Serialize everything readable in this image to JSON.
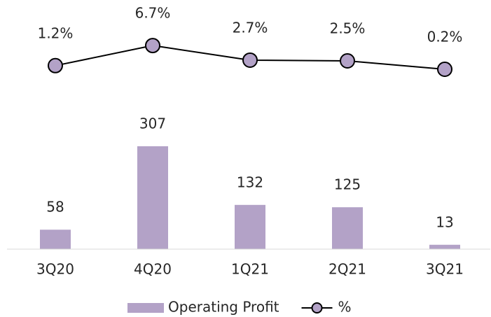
{
  "chart_data": {
    "type": "combo",
    "categories": [
      "3Q20",
      "4Q20",
      "1Q21",
      "2Q21",
      "3Q21"
    ],
    "series": [
      {
        "name": "Operating Profit",
        "type": "bar",
        "color": "#b3a2c7",
        "values": [
          58,
          307,
          132,
          125,
          13
        ]
      },
      {
        "name": "%",
        "type": "line",
        "axis": "y2",
        "color": "#b3a2c7",
        "values": [
          1.2,
          6.7,
          2.7,
          2.5,
          0.2
        ],
        "value_labels": [
          "1.2%",
          "6.7%",
          "2.7%",
          "2.5%",
          "0.2%"
        ]
      }
    ],
    "ylim": [
      0,
      660
    ],
    "y2lim": [
      -49,
      11.5
    ]
  }
}
